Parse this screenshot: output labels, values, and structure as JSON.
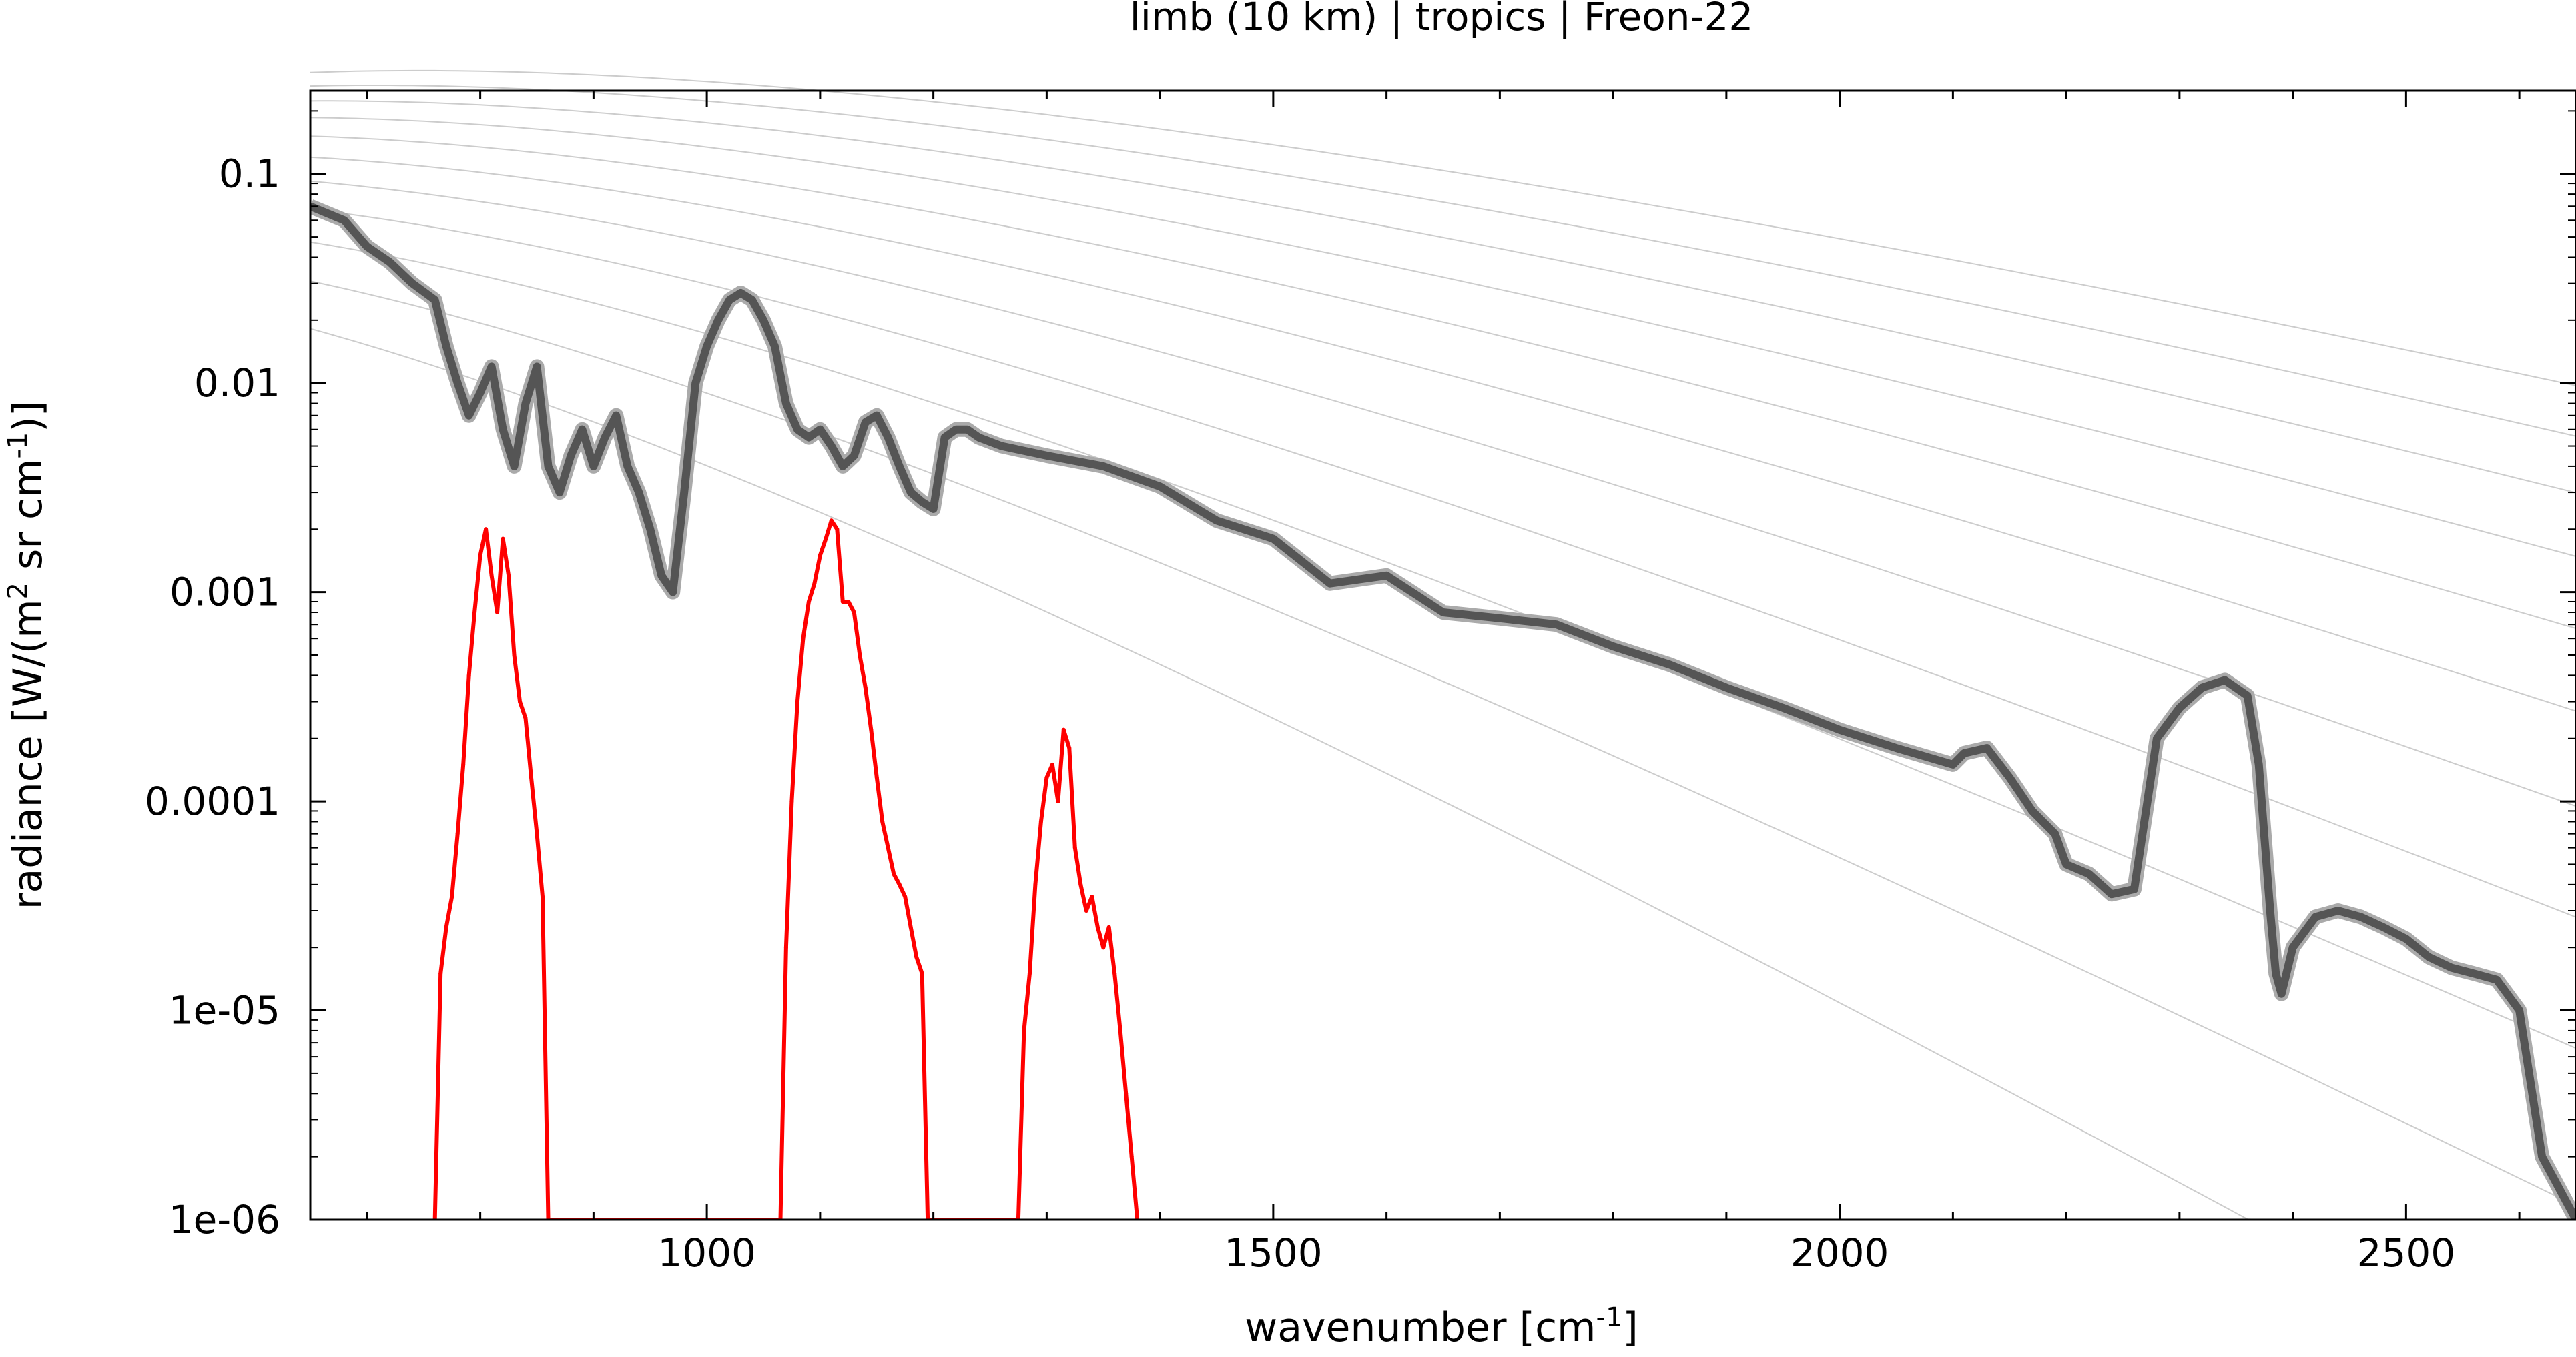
{
  "chart_data": {
    "type": "line",
    "title": "limb (10 km) | tropics | Freon-22",
    "xlabel": {
      "prefix": "wavenumber [cm",
      "sup": "-1",
      "suffix": "]"
    },
    "ylabel": {
      "prefix": "radiance [W/(m",
      "sup1": "2",
      "middle": " sr cm",
      "sup2": "-1",
      "suffix": ")]"
    },
    "xlim": [
      650,
      2650
    ],
    "ylim": [
      1e-06,
      0.25
    ],
    "yscale": "log",
    "grid": false,
    "x_ticks": [
      1000,
      1500,
      2000,
      2500
    ],
    "x_tick_labels": [
      "1000",
      "1500",
      "2000",
      "2500"
    ],
    "y_ticks": [
      0.1,
      0.01,
      0.001,
      0.0001,
      1e-05,
      1e-06
    ],
    "y_tick_labels": [
      "0.1",
      "0.01",
      "0.001",
      "0.0001",
      "1e-05",
      "1e-06"
    ],
    "colors": {
      "total": "#555555",
      "total_light": "#aaaaaa",
      "target": "#ff0000",
      "planck": "#cccccc"
    },
    "reference_curves": {
      "description": "Planck blackbody radiance curves",
      "temperatures_K": [
        180,
        200,
        220,
        240,
        260,
        280,
        300,
        320,
        340,
        360,
        380
      ]
    },
    "series": [
      {
        "x": [
          650,
          680,
          700,
          720,
          740,
          760,
          770,
          780,
          790,
          800,
          810,
          820,
          830,
          840,
          850,
          860,
          870,
          880,
          890,
          900,
          910,
          920,
          930,
          940,
          950,
          960,
          970,
          980,
          990,
          1000,
          1010,
          1020,
          1030,
          1040,
          1050,
          1060,
          1070,
          1080,
          1090,
          1100,
          1110,
          1120,
          1130,
          1140,
          1150,
          1160,
          1170,
          1180,
          1190,
          1200,
          1210,
          1220,
          1230,
          1240,
          1260,
          1300,
          1350,
          1400,
          1450,
          1500,
          1550,
          1600,
          1650,
          1700,
          1750,
          1800,
          1850,
          1900,
          1950,
          2000,
          2050,
          2100,
          2110,
          2130,
          2150,
          2170,
          2190,
          2200,
          2220,
          2240,
          2260,
          2280,
          2300,
          2320,
          2340,
          2360,
          2370,
          2380,
          2385,
          2390,
          2400,
          2420,
          2440,
          2460,
          2480,
          2500,
          2520,
          2540,
          2560,
          2580,
          2600,
          2620,
          2650
        ],
        "y": [
          0.07,
          0.06,
          0.045,
          0.038,
          0.03,
          0.025,
          0.015,
          0.01,
          0.007,
          0.009,
          0.012,
          0.006,
          0.004,
          0.008,
          0.012,
          0.004,
          0.003,
          0.0045,
          0.006,
          0.004,
          0.0055,
          0.007,
          0.004,
          0.003,
          0.002,
          0.0012,
          0.001,
          0.003,
          0.01,
          0.015,
          0.02,
          0.025,
          0.027,
          0.025,
          0.02,
          0.015,
          0.008,
          0.006,
          0.0055,
          0.006,
          0.005,
          0.004,
          0.0045,
          0.0065,
          0.007,
          0.0055,
          0.004,
          0.003,
          0.0027,
          0.0025,
          0.0055,
          0.006,
          0.006,
          0.0055,
          0.005,
          0.0045,
          0.004,
          0.0032,
          0.0022,
          0.0018,
          0.0011,
          0.0012,
          0.0008,
          0.00075,
          0.0007,
          0.00055,
          0.00045,
          0.00035,
          0.00028,
          0.00022,
          0.00018,
          0.00015,
          0.00017,
          0.00018,
          0.00013,
          9e-05,
          7e-05,
          5e-05,
          4.5e-05,
          3.6e-05,
          3.8e-05,
          0.0002,
          0.00028,
          0.00035,
          0.00038,
          0.00032,
          0.00015,
          3e-05,
          1.5e-05,
          1.2e-05,
          2e-05,
          2.8e-05,
          3e-05,
          2.8e-05,
          2.5e-05,
          2.2e-05,
          1.8e-05,
          1.6e-05,
          1.5e-05,
          1.4e-05,
          1e-05,
          2e-06,
          8e-07
        ]
      },
      {
        "x": [
          760,
          765,
          770,
          775,
          780,
          785,
          790,
          795,
          800,
          805,
          810,
          815,
          820,
          825,
          830,
          835,
          840,
          845,
          850,
          855,
          860,
          1065,
          1070,
          1075,
          1080,
          1085,
          1090,
          1095,
          1100,
          1105,
          1110,
          1115,
          1120,
          1125,
          1130,
          1135,
          1140,
          1145,
          1150,
          1155,
          1160,
          1165,
          1170,
          1175,
          1180,
          1185,
          1190,
          1195,
          1275,
          1280,
          1285,
          1290,
          1295,
          1300,
          1305,
          1310,
          1315,
          1320,
          1325,
          1330,
          1335,
          1340,
          1345,
          1350,
          1355,
          1360,
          1365,
          1370,
          1375,
          1380
        ],
        "y": [
          1e-06,
          1.5e-05,
          2.5e-05,
          3.5e-05,
          7e-05,
          0.00015,
          0.0004,
          0.0008,
          0.0015,
          0.002,
          0.0012,
          0.0008,
          0.0018,
          0.0012,
          0.0005,
          0.0003,
          0.00025,
          0.00013,
          7e-05,
          3.5e-05,
          1e-06,
          1e-06,
          2e-05,
          0.0001,
          0.0003,
          0.0006,
          0.0009,
          0.0011,
          0.0015,
          0.0018,
          0.0022,
          0.002,
          0.0009,
          0.0009,
          0.0008,
          0.0005,
          0.00035,
          0.00022,
          0.00013,
          8e-05,
          6e-05,
          4.5e-05,
          4e-05,
          3.5e-05,
          2.5e-05,
          1.8e-05,
          1.5e-05,
          1e-06,
          1e-06,
          8e-06,
          1.5e-05,
          4e-05,
          8e-05,
          0.00013,
          0.00015,
          0.0001,
          0.00022,
          0.00018,
          6e-05,
          4e-05,
          3e-05,
          3.5e-05,
          2.5e-05,
          2e-05,
          2.5e-05,
          1.5e-05,
          8e-06,
          4e-06,
          2e-06,
          1e-06
        ]
      }
    ]
  }
}
